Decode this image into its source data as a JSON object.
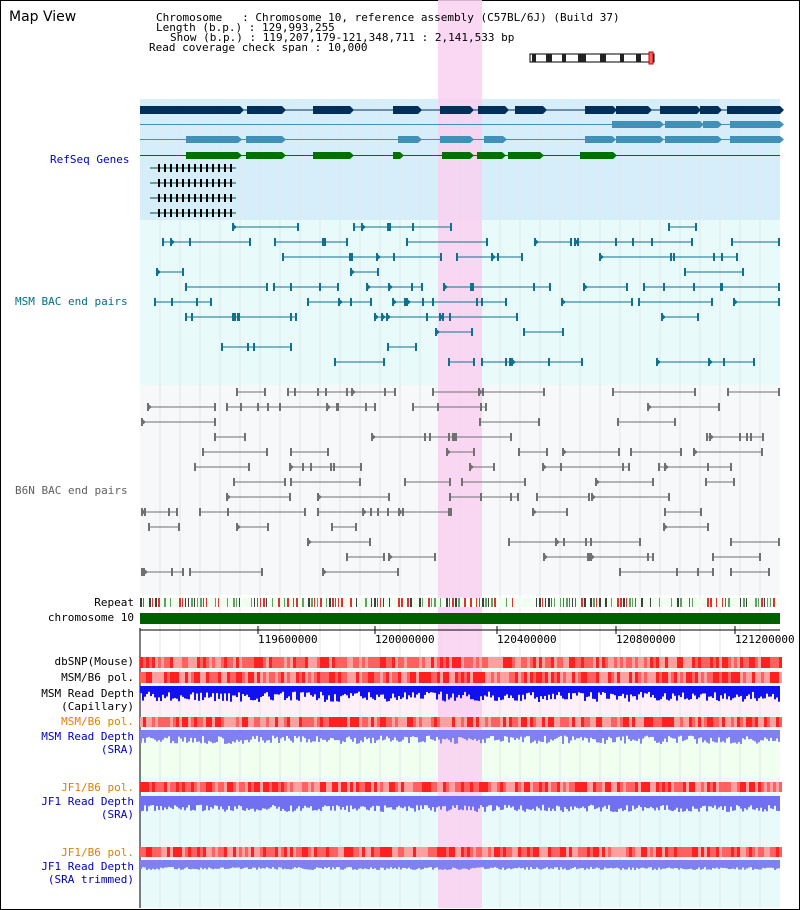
{
  "header": {
    "title": "Map View",
    "chromosome_line": "Chromosome   : Chromosome 10, reference assembly (C57BL/6J) (Build 37)",
    "length_line": "Length (b.p.) : 129,993,255",
    "show_line": "Show (b.p.) : 119,207,179-121,348,711 : 2,141,533 bp",
    "coverage_line": "Read coverage check span : 10,000"
  },
  "tracks": {
    "refseq": "RefSeq Genes",
    "msm_bac": "MSM BAC end pairs",
    "b6n_bac": "B6N BAC end pairs",
    "repeat": "Repeat",
    "chromosome": "chromosome 10",
    "dbsnp": "dbSNP(Mouse)",
    "msm_b6_pol": "MSM/B6 pol.",
    "msm_read_depth_cap_1": "MSM Read Depth",
    "msm_read_depth_cap_2": "(Capillary)",
    "msm_b6_pol_sra": "MSM/B6 pol.",
    "msm_read_depth_sra_1": "MSM Read Depth",
    "msm_read_depth_sra_2": "(SRA)",
    "jf1_b6_pol": "JF1/B6 pol.",
    "jf1_read_depth_1": "JF1 Read Depth",
    "jf1_read_depth_2": "(SRA)",
    "jf1_b6_pol_trim": "JF1/B6 pol.",
    "jf1_read_depth_trim_1": "JF1 Read Depth",
    "jf1_read_depth_trim_2": "(SRA trimmed)"
  },
  "axis": {
    "ticks": [
      "119600000",
      "120000000",
      "120400000",
      "120800000",
      "121200000"
    ]
  },
  "colors": {
    "refseq_bg": "#d6eefa",
    "bac_bg": "#e8fafa",
    "highlight": "#f9d0f0",
    "refseq_label": "#0000c0",
    "msm_label": "#007080",
    "b6n_label": "#606060",
    "orange_label": "#e08000",
    "blue_label": "#0000c0"
  }
}
